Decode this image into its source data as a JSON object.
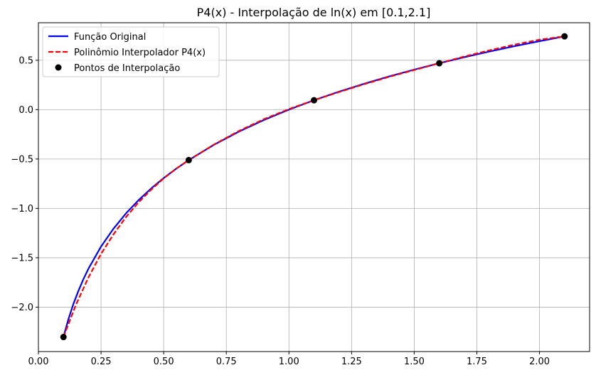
{
  "chart_data": {
    "type": "line",
    "title": "P4(x) - Interpolação de ln(x) em [0.1,2.1]",
    "xlabel": "",
    "ylabel": "",
    "xlim": [
      0.0,
      2.2
    ],
    "ylim": [
      -2.45,
      0.88
    ],
    "grid": true,
    "legend_position": "top-left",
    "x_ticks": [
      0.0,
      0.25,
      0.5,
      0.75,
      1.0,
      1.25,
      1.5,
      1.75,
      2.0
    ],
    "x_tick_labels": [
      "0.00",
      "0.25",
      "0.50",
      "0.75",
      "1.00",
      "1.25",
      "1.50",
      "1.75",
      "2.00"
    ],
    "y_ticks": [
      -2.0,
      -1.5,
      -1.0,
      -0.5,
      0.0,
      0.5
    ],
    "y_tick_labels": [
      "−2.0",
      "−1.5",
      "−1.0",
      "−0.5",
      "0.0",
      "0.5"
    ],
    "series": [
      {
        "name": "Função Original",
        "style": "solid",
        "color": "#0000ff",
        "x": [
          0.1,
          0.12,
          0.14,
          0.16,
          0.18,
          0.2,
          0.25,
          0.3,
          0.35,
          0.4,
          0.45,
          0.5,
          0.55,
          0.6,
          0.7,
          0.8,
          0.9,
          1.0,
          1.1,
          1.2,
          1.3,
          1.4,
          1.5,
          1.6,
          1.7,
          1.8,
          1.9,
          2.0,
          2.1
        ],
        "y": [
          -2.303,
          -2.12,
          -1.966,
          -1.833,
          -1.715,
          -1.609,
          -1.386,
          -1.204,
          -1.05,
          -0.916,
          -0.799,
          -0.693,
          -0.598,
          -0.511,
          -0.357,
          -0.223,
          -0.105,
          0.0,
          0.095,
          0.182,
          0.262,
          0.336,
          0.405,
          0.47,
          0.531,
          0.588,
          0.642,
          0.693,
          0.742
        ]
      },
      {
        "name": "Polinômio Interpolador P4(x)",
        "style": "dashed",
        "color": "#ff0000",
        "x": [
          0.1,
          0.15,
          0.2,
          0.25,
          0.3,
          0.35,
          0.4,
          0.45,
          0.5,
          0.55,
          0.6,
          0.7,
          0.8,
          0.9,
          1.0,
          1.1,
          1.2,
          1.3,
          1.4,
          1.5,
          1.6,
          1.7,
          1.8,
          1.9,
          2.0,
          2.1
        ],
        "y": [
          -2.303,
          -1.975,
          -1.698,
          -1.461,
          -1.262,
          -1.087,
          -0.939,
          -0.811,
          -0.697,
          -0.598,
          -0.511,
          -0.355,
          -0.217,
          -0.097,
          0.006,
          0.095,
          0.178,
          0.257,
          0.332,
          0.401,
          0.47,
          0.538,
          0.6,
          0.658,
          0.708,
          0.742
        ]
      }
    ],
    "points": {
      "name": "Pontos de Interpolação",
      "color": "#000000",
      "x": [
        0.1,
        0.6,
        1.1,
        1.6,
        2.1
      ],
      "y": [
        -2.303,
        -0.511,
        0.095,
        0.47,
        0.742
      ]
    }
  }
}
